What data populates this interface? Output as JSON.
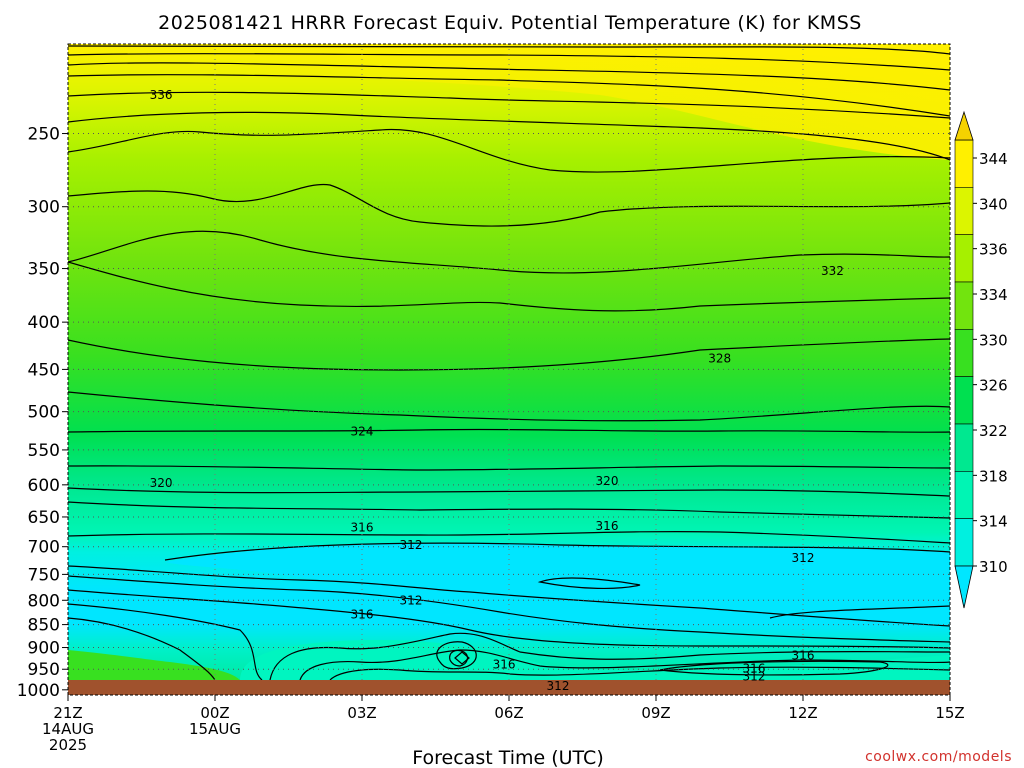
{
  "chart_data": {
    "type": "heatmap",
    "title": "2025081421 HRRR Forecast Equiv. Potential Temperature (K) for KMSS",
    "xlabel": "Forecast Time (UTC)",
    "ylabel": "",
    "x_ticks": [
      {
        "hour": 0,
        "lines": [
          "21Z",
          "14AUG",
          "2025"
        ]
      },
      {
        "hour": 3,
        "lines": [
          "00Z",
          "15AUG"
        ]
      },
      {
        "hour": 6,
        "lines": [
          "03Z"
        ]
      },
      {
        "hour": 9,
        "lines": [
          "06Z"
        ]
      },
      {
        "hour": 12,
        "lines": [
          "09Z"
        ]
      },
      {
        "hour": 15,
        "lines": [
          "12Z"
        ]
      },
      {
        "hour": 18,
        "lines": [
          "15Z"
        ]
      }
    ],
    "xlim": [
      0,
      18
    ],
    "y_axis_scale": "log-pressure (hPa), inverted",
    "y_ticks": [
      250,
      300,
      350,
      400,
      450,
      500,
      550,
      600,
      650,
      700,
      750,
      800,
      850,
      900,
      950,
      1000
    ],
    "ylim": [
      1013,
      200
    ],
    "grid": true,
    "colorbar": {
      "levels": [
        310,
        314,
        318,
        322,
        326,
        330,
        334,
        336,
        340,
        344
      ],
      "labels": [
        "344",
        "340",
        "336",
        "334",
        "330",
        "326",
        "322",
        "318",
        "314",
        "310"
      ],
      "colors": [
        "#00e6ff",
        "#00f0e0",
        "#00f5b4",
        "#00e890",
        "#00e050",
        "#38e020",
        "#72e40e",
        "#a6f000",
        "#dcf500",
        "#fff000",
        "#f5d200"
      ],
      "extend": "both"
    },
    "contour_labels": [
      {
        "value": "336",
        "x": 1.9,
        "p": 227
      },
      {
        "value": "332",
        "x": 15.6,
        "p": 352
      },
      {
        "value": "328",
        "x": 13.3,
        "p": 438
      },
      {
        "value": "324",
        "x": 6.0,
        "p": 525
      },
      {
        "value": "320",
        "x": 1.9,
        "p": 597
      },
      {
        "value": "320",
        "x": 11.0,
        "p": 594
      },
      {
        "value": "316",
        "x": 6.0,
        "p": 667
      },
      {
        "value": "316",
        "x": 11.0,
        "p": 665
      },
      {
        "value": "312",
        "x": 7.0,
        "p": 697
      },
      {
        "value": "312",
        "x": 15.0,
        "p": 720
      },
      {
        "value": "312",
        "x": 7.0,
        "p": 800
      },
      {
        "value": "316",
        "x": 6.0,
        "p": 829
      },
      {
        "value": "316",
        "x": 8.9,
        "p": 939
      },
      {
        "value": "316",
        "x": 14.0,
        "p": 948
      },
      {
        "value": "316",
        "x": 15.0,
        "p": 918
      },
      {
        "value": "312",
        "x": 14.0,
        "p": 967
      },
      {
        "value": "312",
        "x": 10.0,
        "p": 991
      }
    ],
    "terrain_color": "#a0522d"
  },
  "credit": "coolwx.com/models"
}
